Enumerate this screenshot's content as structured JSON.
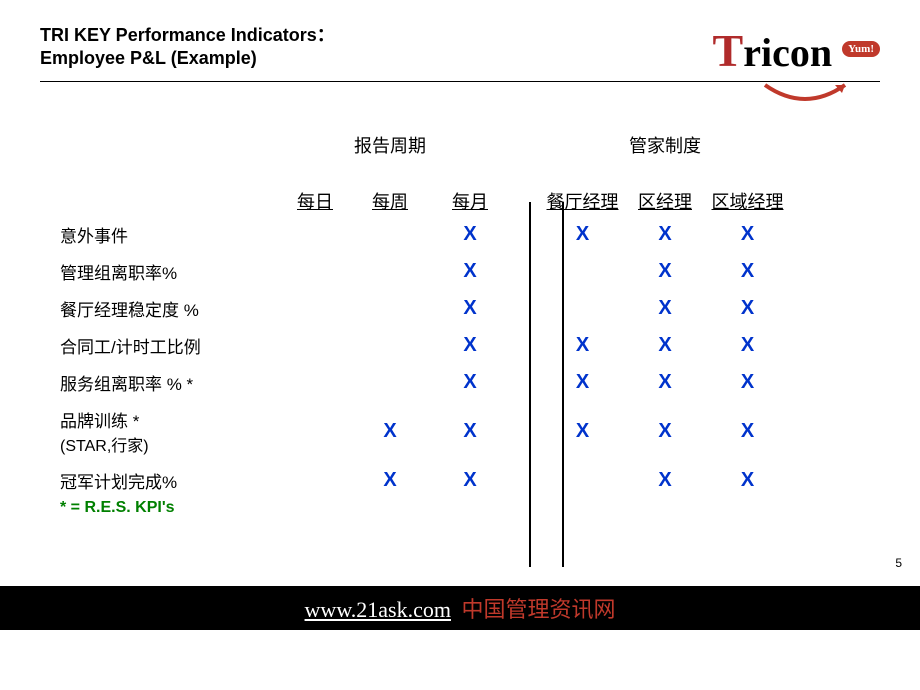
{
  "title_line1": "TRI KEY Performance Indicators：",
  "title_line2": "Employee P&L (Example)",
  "logo_text_t": "T",
  "logo_text_rest": "ricon",
  "logo_pill": "Yum!",
  "group_headers": {
    "report_period": "报告周期",
    "mgmt_system": "管家制度"
  },
  "col_headers": {
    "daily": "每日",
    "weekly": "每周",
    "monthly": "每月",
    "restaurant_mgr": "餐厅经理",
    "district_mgr": "区经理",
    "regional_mgr": "区域经理"
  },
  "rows": [
    {
      "label": "意外事件",
      "sub": "",
      "marks": [
        "",
        "",
        "X",
        "X",
        "X",
        "X"
      ]
    },
    {
      "label": "管理组离职率%",
      "sub": "",
      "marks": [
        "",
        "",
        "X",
        "",
        "X",
        "X"
      ]
    },
    {
      "label": "餐厅经理稳定度 %",
      "sub": "",
      "marks": [
        "",
        "",
        "X",
        "",
        "X",
        "X"
      ]
    },
    {
      "label": "合同工/计时工比例",
      "sub": "",
      "marks": [
        "",
        "",
        "X",
        "X",
        "X",
        "X"
      ]
    },
    {
      "label": "服务组离职率 % *",
      "sub": "",
      "marks": [
        "",
        "",
        "X",
        "X",
        "X",
        "X"
      ]
    },
    {
      "label": "品牌训练 *",
      "sub": "(STAR,行家)",
      "marks": [
        "",
        "X",
        "X",
        "X",
        "X",
        "X"
      ]
    },
    {
      "label": "冠军计划完成%",
      "sub": "",
      "marks": [
        "",
        "X",
        "X",
        "",
        "X",
        "X"
      ]
    }
  ],
  "footnote": "* = R.E.S. KPI's",
  "page_number": "5",
  "footer_link": "www.21ask.com",
  "footer_cn": "中国管理资讯网",
  "colors": {
    "x_mark": "#0033cc",
    "green": "#008000",
    "logo_red": "#b02b2b",
    "footer_red": "#c0392b"
  }
}
